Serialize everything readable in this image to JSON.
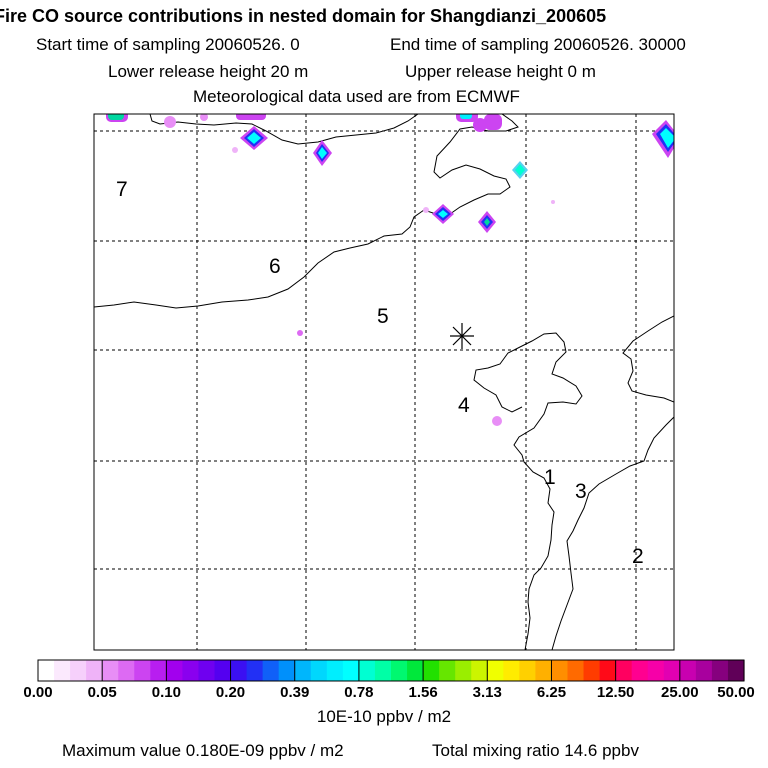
{
  "title": "Fire CO source contributions in nested domain for Shangdianzi_200605",
  "header": {
    "start_time": "Start time of sampling 20060526.     0",
    "end_time": "End time of sampling 20060526. 30000",
    "lower_release": "Lower release height   20 m",
    "upper_release": "Upper release height    0 m",
    "met": "Meteorological data used are from ECMWF"
  },
  "chart_data": {
    "type": "heatmap",
    "title": "Fire CO source contributions in nested domain for Shangdianzi_200605",
    "grid": true,
    "map_labels": [
      "1",
      "2",
      "3",
      "4",
      "5",
      "6",
      "7"
    ],
    "receptor_marker": "station-asterisk",
    "colorbar": {
      "units": "10E-10 ppbv / m2",
      "tick_labels": [
        "0.00",
        "0.05",
        "0.10",
        "0.20",
        "0.39",
        "0.78",
        "1.56",
        "3.13",
        "6.25",
        "12.50",
        "25.00",
        "50.00"
      ],
      "colors": [
        "#ffffff",
        "#fbe9fd",
        "#f6d0fb",
        "#efb3f8",
        "#e88ef6",
        "#dd6af3",
        "#cc44f1",
        "#b81ef0",
        "#a200ee",
        "#8a00ef",
        "#6f00f0",
        "#5400f0",
        "#3b10f2",
        "#2230f5",
        "#1060f8",
        "#0090fb",
        "#00b6fc",
        "#00d7fd",
        "#00eefe",
        "#00ffff",
        "#00ffd2",
        "#00ffa6",
        "#00f870",
        "#00e83b",
        "#22e000",
        "#66e600",
        "#9aee00",
        "#ccf500",
        "#f0ff00",
        "#ffec00",
        "#ffd000",
        "#ffb000",
        "#ff8e00",
        "#ff6a00",
        "#ff3c00",
        "#ff0a18",
        "#ff0060",
        "#ff0090",
        "#f600a8",
        "#e200b2",
        "#c800b0",
        "#a8009e",
        "#86007e",
        "#600058"
      ]
    },
    "max_value": "Maximum value  0.180E-09 ppbv / m2",
    "total_mixing_ratio": "Total mixing ratio       14.6 ppbv"
  }
}
